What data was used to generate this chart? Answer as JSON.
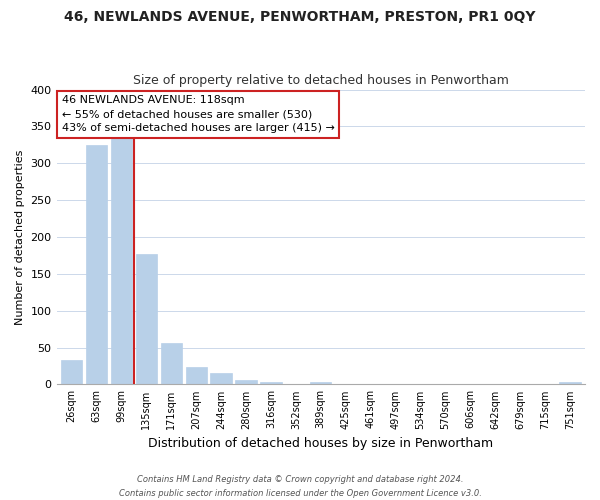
{
  "title": "46, NEWLANDS AVENUE, PENWORTHAM, PRESTON, PR1 0QY",
  "subtitle": "Size of property relative to detached houses in Penwortham",
  "xlabel": "Distribution of detached houses by size in Penwortham",
  "ylabel": "Number of detached properties",
  "bar_labels": [
    "26sqm",
    "63sqm",
    "99sqm",
    "135sqm",
    "171sqm",
    "207sqm",
    "244sqm",
    "280sqm",
    "316sqm",
    "352sqm",
    "389sqm",
    "425sqm",
    "461sqm",
    "497sqm",
    "534sqm",
    "570sqm",
    "606sqm",
    "642sqm",
    "679sqm",
    "715sqm",
    "751sqm"
  ],
  "bar_values": [
    33,
    325,
    335,
    177,
    56,
    24,
    16,
    6,
    3,
    0,
    3,
    0,
    0,
    0,
    0,
    0,
    0,
    0,
    0,
    0,
    3
  ],
  "bar_color": "#b8d0e8",
  "annotation_line1": "46 NEWLANDS AVENUE: 118sqm",
  "annotation_line2": "← 55% of detached houses are smaller (530)",
  "annotation_line3": "43% of semi-detached houses are larger (415) →",
  "annotation_box_color": "#ffffff",
  "annotation_box_edge": "#cc2222",
  "vline_color": "#cc2222",
  "vline_x": 2.5,
  "ylim": [
    0,
    400
  ],
  "yticks": [
    0,
    50,
    100,
    150,
    200,
    250,
    300,
    350,
    400
  ],
  "footnote_line1": "Contains HM Land Registry data © Crown copyright and database right 2024.",
  "footnote_line2": "Contains public sector information licensed under the Open Government Licence v3.0.",
  "bg_color": "#ffffff",
  "grid_color": "#ccd8ea",
  "title_fontsize": 10,
  "subtitle_fontsize": 9,
  "xlabel_fontsize": 9,
  "ylabel_fontsize": 8
}
